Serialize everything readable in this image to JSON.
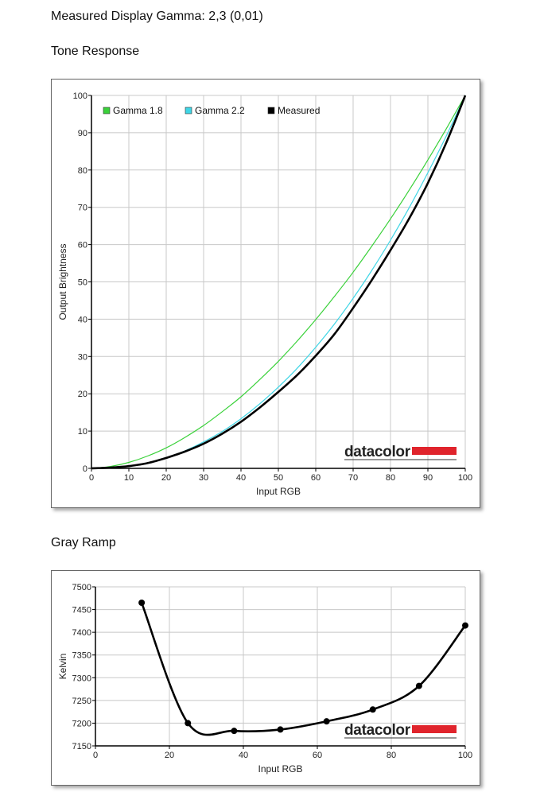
{
  "page": {
    "title": "Measured Display Gamma: 2,3 (0,01)",
    "tone_heading": "Tone Response",
    "ramp_heading": "Gray Ramp",
    "logo_text": "datacolor",
    "logo_color": "#e0242c"
  },
  "chart_data": [
    {
      "type": "line",
      "title": "Tone Response",
      "xlabel": "Input RGB",
      "ylabel": "Output Brightness",
      "xlim": [
        0,
        100
      ],
      "ylim": [
        0,
        100
      ],
      "xticks": [
        0,
        10,
        20,
        30,
        40,
        50,
        60,
        70,
        80,
        90,
        100
      ],
      "yticks": [
        0,
        10,
        20,
        30,
        40,
        50,
        60,
        70,
        80,
        90,
        100
      ],
      "grid": true,
      "legend_position": "top-left",
      "series": [
        {
          "name": "Gamma 1.8",
          "color": "#3ad13a",
          "x": [
            0,
            5,
            10,
            15,
            20,
            25,
            30,
            35,
            40,
            45,
            50,
            55,
            60,
            65,
            70,
            75,
            80,
            85,
            90,
            95,
            100
          ],
          "y": [
            0,
            0.5,
            1.6,
            3.3,
            5.5,
            8.3,
            11.5,
            15.2,
            19.2,
            23.8,
            28.7,
            34.1,
            39.9,
            46.1,
            52.6,
            59.6,
            66.9,
            74.6,
            82.7,
            91.2,
            100
          ]
        },
        {
          "name": "Gamma 2.2",
          "color": "#3fd6e6",
          "x": [
            0,
            5,
            10,
            15,
            20,
            25,
            30,
            35,
            40,
            45,
            50,
            55,
            60,
            65,
            70,
            75,
            80,
            85,
            90,
            95,
            100
          ],
          "y": [
            0,
            0.1,
            0.6,
            1.5,
            2.9,
            4.7,
            7.1,
            9.9,
            13.3,
            17.3,
            21.8,
            26.8,
            32.5,
            38.7,
            45.6,
            53.1,
            61.2,
            69.9,
            79.3,
            89.3,
            100
          ]
        },
        {
          "name": "Measured",
          "color": "#000000",
          "x": [
            0,
            5,
            10,
            15,
            20,
            25,
            30,
            35,
            40,
            45,
            50,
            55,
            60,
            65,
            70,
            75,
            80,
            85,
            90,
            95,
            100
          ],
          "y": [
            0,
            0.2,
            0.6,
            1.4,
            2.8,
            4.5,
            6.6,
            9.3,
            12.5,
            16.3,
            20.5,
            25.0,
            30.2,
            36.0,
            43.0,
            50.5,
            58.5,
            67.0,
            76.5,
            87.5,
            100
          ]
        }
      ]
    },
    {
      "type": "line",
      "title": "Gray Ramp",
      "xlabel": "Input RGB",
      "ylabel": "Kelvin",
      "xlim": [
        0,
        100
      ],
      "ylim": [
        7150,
        7500
      ],
      "xticks": [
        0,
        20,
        40,
        60,
        80,
        100
      ],
      "yticks": [
        7150,
        7200,
        7250,
        7300,
        7350,
        7400,
        7450,
        7500
      ],
      "grid": true,
      "series": [
        {
          "name": "",
          "color": "#000000",
          "x": [
            12.5,
            25,
            37.5,
            50,
            62.5,
            75,
            87.5,
            100
          ],
          "y": [
            7465,
            7200,
            7183,
            7186,
            7204,
            7230,
            7282,
            7415
          ]
        }
      ]
    }
  ]
}
